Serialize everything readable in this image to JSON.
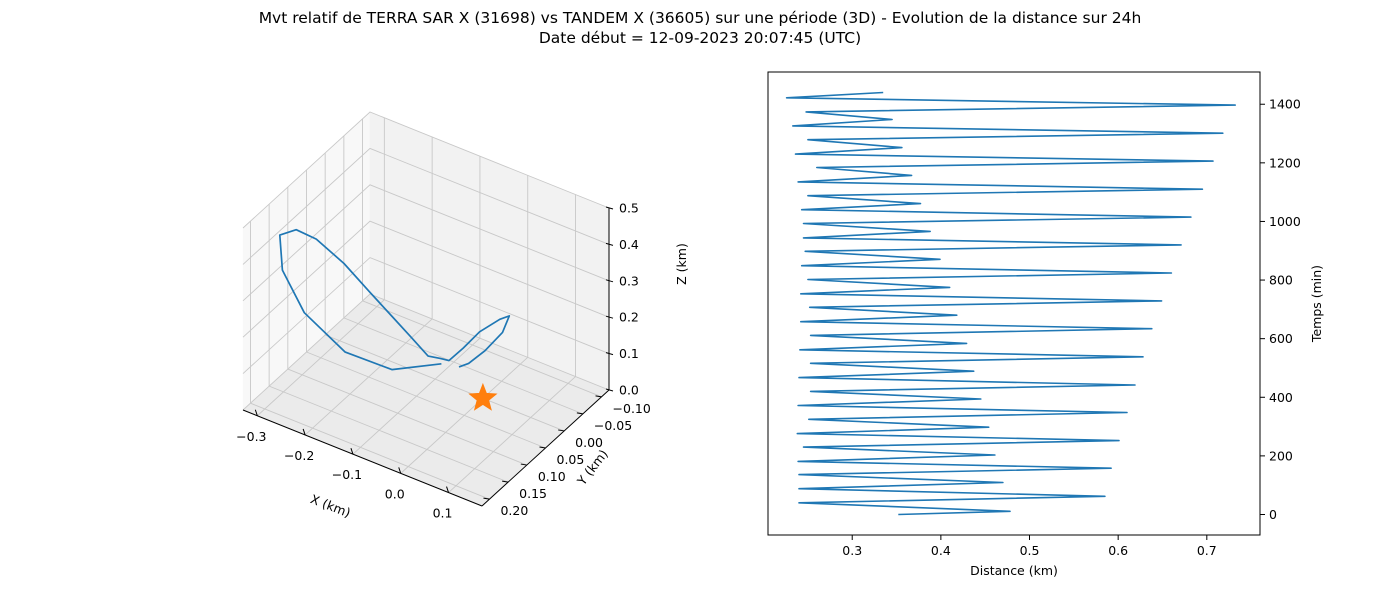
{
  "figure": {
    "title_line1": "Mvt relatif de TERRA SAR X (31698) vs TANDEM X (36605) sur une période (3D) - Evolution de la distance sur 24h",
    "title_line2": "Date début = 12-09-2023 20:07:45 (UTC)"
  },
  "chart_data": [
    {
      "type": "line",
      "projection": "3d",
      "xlabel": "X (km)",
      "ylabel": "Y (km)",
      "zlabel": "Z (km)",
      "xlim": [
        -0.33,
        0.17
      ],
      "ylim": [
        -0.12,
        0.22
      ],
      "zlim": [
        0.0,
        0.5
      ],
      "xticks": [
        "−0.3",
        "−0.2",
        "−0.1",
        "0.0",
        "0.1"
      ],
      "yticks": [
        "−0.10",
        "−0.05",
        "0.00",
        "0.05",
        "0.10",
        "0.15",
        "0.20"
      ],
      "zticks": [
        "0.0",
        "0.1",
        "0.2",
        "0.3",
        "0.4",
        "0.5"
      ],
      "grid": true,
      "series": [
        {
          "color": "#1f77b4",
          "points": [
            {
              "x": -0.04,
              "y": 0.06,
              "z": 0.13
            },
            {
              "x": -0.12,
              "y": 0.09,
              "z": 0.1
            },
            {
              "x": -0.21,
              "y": 0.1,
              "z": 0.11
            },
            {
              "x": -0.28,
              "y": 0.12,
              "z": 0.2
            },
            {
              "x": -0.31,
              "y": 0.14,
              "z": 0.32
            },
            {
              "x": -0.3,
              "y": 0.16,
              "z": 0.44
            },
            {
              "x": -0.25,
              "y": 0.18,
              "z": 0.5
            },
            {
              "x": -0.2,
              "y": 0.19,
              "z": 0.51
            },
            {
              "x": -0.15,
              "y": 0.18,
              "z": 0.46
            },
            {
              "x": -0.12,
              "y": 0.15,
              "z": 0.37
            },
            {
              "x": -0.1,
              "y": 0.12,
              "z": 0.29
            },
            {
              "x": -0.08,
              "y": 0.09,
              "z": 0.21
            },
            {
              "x": -0.06,
              "y": 0.07,
              "z": 0.15
            },
            {
              "x": -0.05,
              "y": 0.05,
              "z": 0.13
            },
            {
              "x": -0.04,
              "y": 0.04,
              "z": 0.12
            },
            {
              "x": -0.01,
              "y": 0.04,
              "z": 0.17
            },
            {
              "x": 0.04,
              "y": 0.06,
              "z": 0.26
            },
            {
              "x": 0.09,
              "y": 0.07,
              "z": 0.33
            },
            {
              "x": 0.11,
              "y": 0.07,
              "z": 0.35
            },
            {
              "x": 0.08,
              "y": 0.05,
              "z": 0.27
            },
            {
              "x": 0.02,
              "y": 0.02,
              "z": 0.16
            },
            {
              "x": -0.03,
              "y": 0.0,
              "z": 0.08
            },
            {
              "x": -0.05,
              "y": 0.0,
              "z": 0.06
            }
          ]
        },
        {
          "type": "scatter",
          "marker": "star",
          "color": "#ff7f0e",
          "points": [
            {
              "x": 0.0,
              "y": 0.0,
              "z": 0.0
            }
          ]
        }
      ]
    },
    {
      "type": "line",
      "xlabel": "Distance (km)",
      "ylabel": "Temps (min)",
      "xlim": [
        0.205,
        0.76
      ],
      "ylim": [
        -70,
        1510
      ],
      "xticks": [
        0.3,
        0.4,
        0.5,
        0.6,
        0.7
      ],
      "yticks": [
        0,
        200,
        400,
        600,
        800,
        1000,
        1200,
        1400
      ],
      "y_axis_side": "right",
      "grid": false,
      "series": [
        {
          "color": "#1f77b4",
          "points": [
            [
              0.352,
              0
            ],
            [
              0.478,
              11
            ],
            [
              0.24,
              40
            ],
            [
              0.585,
              62
            ],
            [
              0.24,
              88
            ],
            [
              0.47,
              109
            ],
            [
              0.24,
              136
            ],
            [
              0.592,
              158
            ],
            [
              0.239,
              181
            ],
            [
              0.461,
              203
            ],
            [
              0.245,
              230
            ],
            [
              0.601,
              252
            ],
            [
              0.238,
              276
            ],
            [
              0.454,
              298
            ],
            [
              0.251,
              325
            ],
            [
              0.61,
              348
            ],
            [
              0.239,
              372
            ],
            [
              0.445,
              394
            ],
            [
              0.253,
              420
            ],
            [
              0.619,
              442
            ],
            [
              0.24,
              467
            ],
            [
              0.437,
              489
            ],
            [
              0.253,
              516
            ],
            [
              0.628,
              538
            ],
            [
              0.241,
              562
            ],
            [
              0.429,
              584
            ],
            [
              0.253,
              611
            ],
            [
              0.638,
              634
            ],
            [
              0.242,
              658
            ],
            [
              0.418,
              680
            ],
            [
              0.252,
              707
            ],
            [
              0.649,
              729
            ],
            [
              0.242,
              753
            ],
            [
              0.41,
              775
            ],
            [
              0.25,
              802
            ],
            [
              0.66,
              824
            ],
            [
              0.243,
              849
            ],
            [
              0.399,
              871
            ],
            [
              0.247,
              898
            ],
            [
              0.671,
              920
            ],
            [
              0.245,
              944
            ],
            [
              0.388,
              966
            ],
            [
              0.245,
              993
            ],
            [
              0.682,
              1015
            ],
            [
              0.243,
              1040
            ],
            [
              0.377,
              1061
            ],
            [
              0.25,
              1088
            ],
            [
              0.695,
              1110
            ],
            [
              0.239,
              1135
            ],
            [
              0.367,
              1157
            ],
            [
              0.26,
              1184
            ],
            [
              0.707,
              1206
            ],
            [
              0.236,
              1230
            ],
            [
              0.356,
              1252
            ],
            [
              0.25,
              1279
            ],
            [
              0.718,
              1301
            ],
            [
              0.233,
              1326
            ],
            [
              0.345,
              1348
            ],
            [
              0.248,
              1374
            ],
            [
              0.732,
              1397
            ],
            [
              0.226,
              1422
            ],
            [
              0.335,
              1440
            ]
          ]
        }
      ]
    }
  ]
}
